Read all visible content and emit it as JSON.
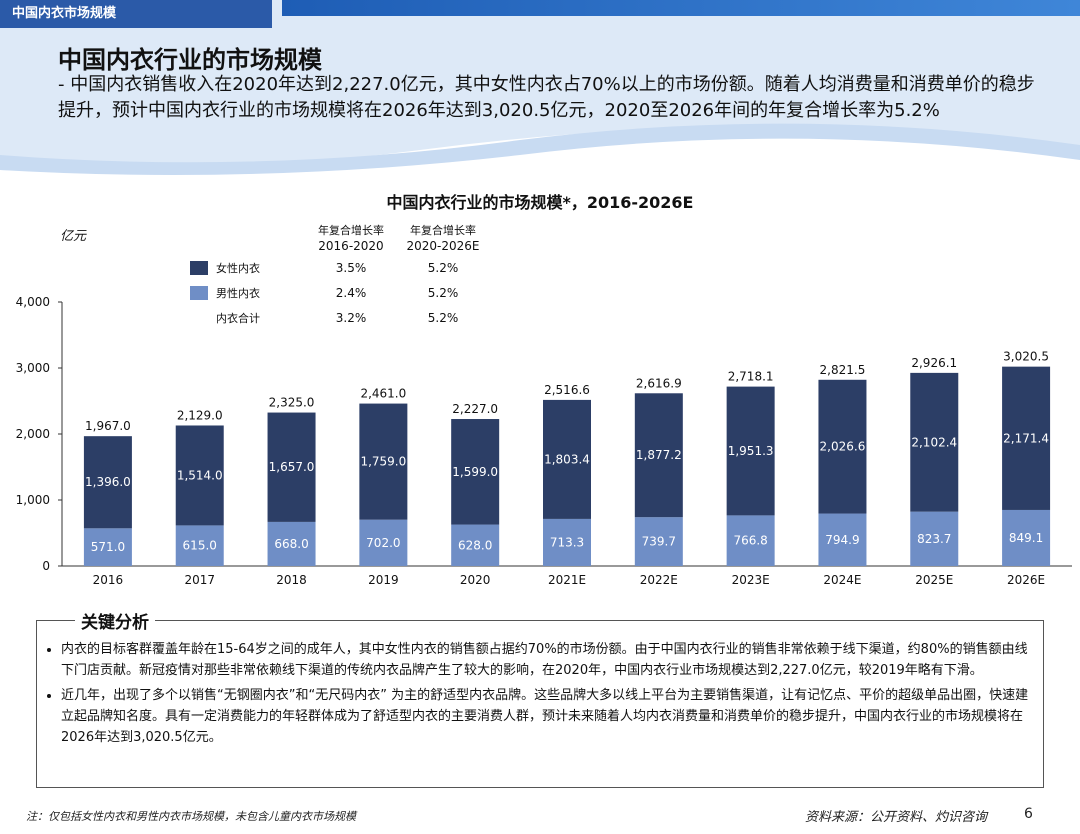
{
  "header": {
    "section_tab": "中国内衣市场规模",
    "title": "中国内衣行业的市场规模",
    "subtitle": "- 中国内衣销售收入在2020年达到2,227.0亿元，其中女性内衣占70%以上的市场份额。随着人均消费量和消费单价的稳步提升，预计中国内衣行业的市场规模将在2026年达到3,020.5亿元，2020至2026年间的年复合增长率为5.2%"
  },
  "chart_data": {
    "type": "bar",
    "stacked": true,
    "title": "中国内衣行业的市场规模*，2016-2026E",
    "ylabel": "亿元",
    "ylim": [
      0,
      4000
    ],
    "yticks": [
      "0",
      "1,000",
      "2,000",
      "3,000",
      "4,000"
    ],
    "categories": [
      "2016",
      "2017",
      "2018",
      "2019",
      "2020",
      "2021E",
      "2022E",
      "2023E",
      "2024E",
      "2025E",
      "2026E"
    ],
    "series": [
      {
        "name": "男性内衣",
        "color": "#6f8ec6",
        "values": [
          571.0,
          615.0,
          668.0,
          702.0,
          628.0,
          713.3,
          739.7,
          766.8,
          794.9,
          823.7,
          849.1
        ],
        "labels": [
          "571.0",
          "615.0",
          "668.0",
          "702.0",
          "628.0",
          "713.3",
          "739.7",
          "766.8",
          "794.9",
          "823.7",
          "849.1"
        ]
      },
      {
        "name": "女性内衣",
        "color": "#2c3e66",
        "values": [
          1396.0,
          1514.0,
          1657.0,
          1759.0,
          1599.0,
          1803.4,
          1877.2,
          1951.3,
          2026.6,
          2102.4,
          2171.4
        ],
        "labels": [
          "1,396.0",
          "1,514.0",
          "1,657.0",
          "1,759.0",
          "1,599.0",
          "1,803.4",
          "1,877.2",
          "1,951.3",
          "2,026.6",
          "2,102.4",
          "2,171.4"
        ]
      }
    ],
    "totals": [
      1967.0,
      2129.0,
      2325.0,
      2461.0,
      2227.0,
      2516.6,
      2616.9,
      2718.1,
      2821.5,
      2926.1,
      3020.5
    ],
    "total_labels": [
      "1,967.0",
      "2,129.0",
      "2,325.0",
      "2,461.0",
      "2,227.0",
      "2,516.6",
      "2,616.9",
      "2,718.1",
      "2,821.5",
      "2,926.1",
      "3,020.5"
    ],
    "cagr_table": {
      "headers": [
        [
          "年复合增长率",
          "2016-2020"
        ],
        [
          "年复合增长率",
          "2020-2026E"
        ]
      ],
      "rows": [
        {
          "label": "女性内衣",
          "color": "#2c3e66",
          "values": [
            "3.5%",
            "5.2%"
          ]
        },
        {
          "label": "男性内衣",
          "color": "#6f8ec6",
          "values": [
            "2.4%",
            "5.2%"
          ]
        },
        {
          "label": "内衣合计",
          "color": "",
          "values": [
            "3.2%",
            "5.2%"
          ]
        }
      ]
    },
    "legend": "top-left"
  },
  "analysis": {
    "heading": "关键分析",
    "bullets": [
      "内衣的目标客群覆盖年龄在15-64岁之间的成年人，其中女性内衣的销售额占据约70%的市场份额。由于中国内衣行业的销售非常依赖于线下渠道，约80%的销售额由线下门店贡献。新冠疫情对那些非常依赖线下渠道的传统内衣品牌产生了较大的影响，在2020年，中国内衣行业市场规模达到2,227.0亿元，较2019年略有下滑。",
      "近几年，出现了多个以销售“无钢圈内衣”和“无尺码内衣” 为主的舒适型内衣品牌。这些品牌大多以线上平台为主要销售渠道，让有记忆点、平价的超级单品出圈，快速建立起品牌知名度。具有一定消费能力的年轻群体成为了舒适型内衣的主要消费人群，预计未来随着人均内衣消费量和消费单价的稳步提升，中国内衣行业的市场规模将在2026年达到3,020.5亿元。"
    ]
  },
  "footer": {
    "note": "注：仅包括女性内衣和男性内衣市场规模，未包含儿童内衣市场规模",
    "source": "资料来源：公开资料、灼识咨询",
    "page": "6"
  }
}
